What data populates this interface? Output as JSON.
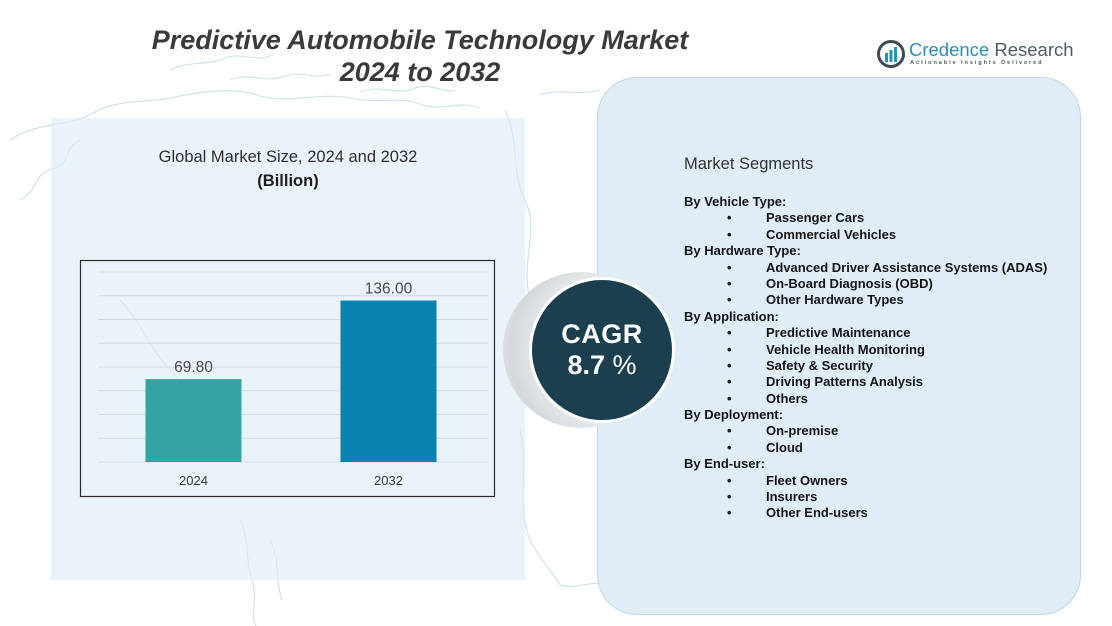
{
  "header": {
    "title_line1": "Predictive Automobile Technology Market",
    "title_line2": "2024 to 2032"
  },
  "logo": {
    "name_part1": "Credence",
    "name_part2": "Research",
    "tagline": "Actionable Insights Delivered",
    "icon": "bar-chart-circle-logo-icon"
  },
  "colors": {
    "bar_2024": "#35a3a3",
    "bar_2032": "#0a82b0",
    "cagr_circle": "#1b3f4e",
    "panel_bg": "#dfedf6"
  },
  "chart_data": {
    "type": "bar",
    "title": "Global Market Size, 2024 and 2032",
    "subtitle": "(Billion)",
    "categories": [
      "2024",
      "2032"
    ],
    "values": [
      69.8,
      136.0
    ],
    "value_labels": [
      "69.80",
      "136.00"
    ],
    "xlabel": "",
    "ylabel": "",
    "ylim": [
      0,
      160
    ],
    "grid": true,
    "grid_step": 20,
    "y_tick_labels_shown": false,
    "legend": "none"
  },
  "cagr": {
    "label": "CAGR",
    "value": "8.7",
    "unit": "%"
  },
  "segments": {
    "title": "Market Segments",
    "bullet": "•",
    "groups": [
      {
        "heading": "By Vehicle Type:",
        "items": [
          "Passenger Cars",
          "Commercial Vehicles"
        ]
      },
      {
        "heading": "By Hardware Type:",
        "items": [
          "Advanced Driver Assistance Systems (ADAS)",
          "On-Board Diagnosis (OBD)",
          "Other Hardware Types"
        ]
      },
      {
        "heading": "By Application:",
        "items": [
          "Predictive Maintenance",
          "Vehicle Health Monitoring",
          "Safety & Security",
          "Driving Patterns Analysis",
          "Others"
        ]
      },
      {
        "heading": "By Deployment:",
        "items": [
          "On-premise",
          "Cloud"
        ]
      },
      {
        "heading": "By End-user:",
        "items": [
          "Fleet Owners",
          "Insurers",
          "Other End-users"
        ]
      }
    ]
  }
}
